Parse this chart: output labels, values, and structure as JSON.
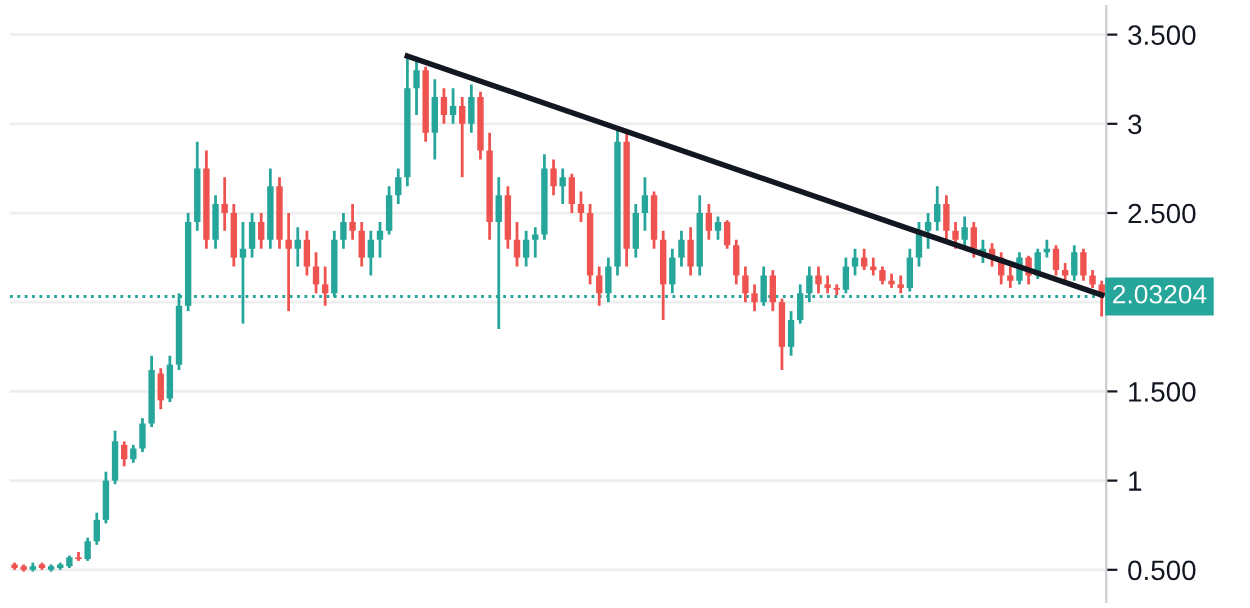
{
  "chart_data": {
    "type": "candlestick",
    "categories": [
      null,
      null,
      null,
      null,
      null,
      null,
      null,
      null,
      null,
      null,
      null,
      null,
      null,
      null,
      null,
      null,
      null,
      null,
      null,
      null,
      null,
      null,
      null,
      null,
      null,
      null,
      null,
      null,
      null,
      null,
      null,
      null,
      null,
      null,
      null,
      null,
      null,
      null,
      null,
      null,
      null,
      null,
      null,
      null,
      null,
      null,
      null,
      null,
      null,
      null,
      null,
      null,
      null,
      null,
      null,
      null,
      null,
      null,
      null,
      null,
      null,
      null,
      null,
      null,
      null,
      null,
      null,
      null,
      null,
      null,
      null,
      null,
      null,
      null,
      null,
      null,
      null,
      null,
      null,
      null,
      null,
      null,
      null,
      null,
      null,
      null,
      null,
      null,
      null,
      null,
      null,
      null,
      null,
      null,
      null,
      null,
      null,
      null,
      null,
      null,
      null,
      null,
      null,
      null,
      null,
      null,
      null,
      null,
      null,
      null,
      null,
      null,
      null,
      null,
      null,
      null,
      null,
      null,
      null,
      null
    ],
    "ohlc": [
      [
        0.53,
        0.54,
        0.5,
        0.51
      ],
      [
        0.52,
        0.53,
        0.49,
        0.5
      ],
      [
        0.5,
        0.54,
        0.49,
        0.52
      ],
      [
        0.53,
        0.54,
        0.5,
        0.51
      ],
      [
        0.5,
        0.53,
        0.49,
        0.52
      ],
      [
        0.51,
        0.54,
        0.5,
        0.53
      ],
      [
        0.52,
        0.58,
        0.51,
        0.57
      ],
      [
        0.57,
        0.6,
        0.55,
        0.56
      ],
      [
        0.56,
        0.68,
        0.55,
        0.66
      ],
      [
        0.66,
        0.82,
        0.64,
        0.78
      ],
      [
        0.78,
        1.05,
        0.76,
        1.0
      ],
      [
        1.0,
        1.28,
        0.98,
        1.22
      ],
      [
        1.2,
        1.22,
        1.08,
        1.12
      ],
      [
        1.12,
        1.2,
        1.1,
        1.18
      ],
      [
        1.18,
        1.35,
        1.16,
        1.32
      ],
      [
        1.32,
        1.7,
        1.3,
        1.62
      ],
      [
        1.6,
        1.63,
        1.4,
        1.45
      ],
      [
        1.46,
        1.7,
        1.44,
        1.65
      ],
      [
        1.65,
        2.05,
        1.62,
        1.98
      ],
      [
        1.98,
        2.5,
        1.95,
        2.45
      ],
      [
        2.45,
        2.9,
        2.4,
        2.75
      ],
      [
        2.75,
        2.85,
        2.3,
        2.35
      ],
      [
        2.35,
        2.6,
        2.3,
        2.55
      ],
      [
        2.55,
        2.7,
        2.4,
        2.5
      ],
      [
        2.5,
        2.55,
        2.2,
        2.25
      ],
      [
        2.25,
        2.45,
        1.88,
        2.3
      ],
      [
        2.3,
        2.5,
        2.25,
        2.45
      ],
      [
        2.45,
        2.5,
        2.3,
        2.35
      ],
      [
        2.35,
        2.75,
        2.3,
        2.65
      ],
      [
        2.65,
        2.7,
        2.3,
        2.35
      ],
      [
        2.35,
        2.5,
        1.95,
        2.3
      ],
      [
        2.3,
        2.42,
        2.2,
        2.35
      ],
      [
        2.35,
        2.4,
        2.15,
        2.2
      ],
      [
        2.2,
        2.28,
        2.05,
        2.1
      ],
      [
        2.1,
        2.2,
        1.98,
        2.05
      ],
      [
        2.05,
        2.4,
        2.03,
        2.35
      ],
      [
        2.35,
        2.5,
        2.3,
        2.45
      ],
      [
        2.45,
        2.55,
        2.35,
        2.4
      ],
      [
        2.4,
        2.45,
        2.2,
        2.25
      ],
      [
        2.25,
        2.4,
        2.15,
        2.35
      ],
      [
        2.35,
        2.45,
        2.25,
        2.4
      ],
      [
        2.4,
        2.65,
        2.38,
        2.6
      ],
      [
        2.6,
        2.75,
        2.55,
        2.7
      ],
      [
        2.7,
        3.38,
        2.65,
        3.2
      ],
      [
        3.2,
        3.35,
        3.05,
        3.3
      ],
      [
        3.3,
        3.32,
        2.9,
        2.95
      ],
      [
        2.95,
        3.25,
        2.8,
        3.15
      ],
      [
        3.15,
        3.2,
        3.0,
        3.05
      ],
      [
        3.05,
        3.2,
        3.0,
        3.1
      ],
      [
        3.1,
        3.15,
        2.7,
        3.0
      ],
      [
        3.0,
        3.22,
        2.95,
        3.15
      ],
      [
        3.15,
        3.18,
        2.8,
        2.85
      ],
      [
        2.85,
        2.95,
        2.35,
        2.45
      ],
      [
        2.45,
        2.7,
        1.85,
        2.6
      ],
      [
        2.6,
        2.65,
        2.3,
        2.35
      ],
      [
        2.35,
        2.45,
        2.2,
        2.25
      ],
      [
        2.25,
        2.4,
        2.2,
        2.35
      ],
      [
        2.35,
        2.42,
        2.25,
        2.38
      ],
      [
        2.38,
        2.83,
        2.35,
        2.75
      ],
      [
        2.75,
        2.8,
        2.6,
        2.65
      ],
      [
        2.65,
        2.75,
        2.55,
        2.7
      ],
      [
        2.7,
        2.72,
        2.5,
        2.55
      ],
      [
        2.55,
        2.62,
        2.45,
        2.5
      ],
      [
        2.5,
        2.55,
        2.1,
        2.15
      ],
      [
        2.15,
        2.2,
        1.98,
        2.05
      ],
      [
        2.05,
        2.25,
        2.0,
        2.2
      ],
      [
        2.2,
        2.98,
        2.15,
        2.9
      ],
      [
        2.9,
        2.95,
        2.2,
        2.3
      ],
      [
        2.3,
        2.55,
        2.25,
        2.5
      ],
      [
        2.5,
        2.7,
        2.4,
        2.6
      ],
      [
        2.6,
        2.62,
        2.3,
        2.35
      ],
      [
        2.35,
        2.4,
        1.9,
        2.1
      ],
      [
        2.1,
        2.3,
        2.05,
        2.25
      ],
      [
        2.25,
        2.4,
        2.2,
        2.35
      ],
      [
        2.35,
        2.42,
        2.15,
        2.2
      ],
      [
        2.2,
        2.6,
        2.15,
        2.5
      ],
      [
        2.5,
        2.55,
        2.35,
        2.4
      ],
      [
        2.4,
        2.48,
        2.35,
        2.45
      ],
      [
        2.45,
        2.46,
        2.3,
        2.32
      ],
      [
        2.32,
        2.35,
        2.1,
        2.15
      ],
      [
        2.15,
        2.2,
        2.0,
        2.05
      ],
      [
        2.05,
        2.1,
        1.95,
        2.0
      ],
      [
        2.0,
        2.2,
        1.98,
        2.15
      ],
      [
        2.15,
        2.18,
        1.95,
        2.0
      ],
      [
        2.0,
        2.02,
        1.62,
        1.75
      ],
      [
        1.75,
        1.95,
        1.7,
        1.9
      ],
      [
        1.9,
        2.1,
        1.88,
        2.05
      ],
      [
        2.05,
        2.2,
        2.0,
        2.15
      ],
      [
        2.15,
        2.2,
        2.05,
        2.1
      ],
      [
        2.1,
        2.15,
        2.05,
        2.08
      ],
      [
        2.08,
        2.1,
        2.04,
        2.07
      ],
      [
        2.07,
        2.25,
        2.05,
        2.2
      ],
      [
        2.2,
        2.3,
        2.15,
        2.25
      ],
      [
        2.25,
        2.3,
        2.18,
        2.2
      ],
      [
        2.2,
        2.25,
        2.15,
        2.18
      ],
      [
        2.18,
        2.2,
        2.1,
        2.12
      ],
      [
        2.12,
        2.16,
        2.08,
        2.1
      ],
      [
        2.1,
        2.15,
        2.05,
        2.08
      ],
      [
        2.08,
        2.3,
        2.06,
        2.25
      ],
      [
        2.25,
        2.45,
        2.2,
        2.4
      ],
      [
        2.4,
        2.5,
        2.3,
        2.45
      ],
      [
        2.45,
        2.65,
        2.4,
        2.55
      ],
      [
        2.55,
        2.6,
        2.35,
        2.4
      ],
      [
        2.4,
        2.45,
        2.3,
        2.35
      ],
      [
        2.35,
        2.48,
        2.3,
        2.42
      ],
      [
        2.42,
        2.45,
        2.25,
        2.3
      ],
      [
        2.27,
        2.35,
        2.22,
        2.3
      ],
      [
        2.3,
        2.33,
        2.2,
        2.25
      ],
      [
        2.25,
        2.28,
        2.1,
        2.15
      ],
      [
        2.15,
        2.2,
        2.08,
        2.12
      ],
      [
        2.12,
        2.28,
        2.1,
        2.25
      ],
      [
        2.25,
        2.26,
        2.1,
        2.15
      ],
      [
        2.15,
        2.3,
        2.13,
        2.28
      ],
      [
        2.28,
        2.35,
        2.25,
        2.3
      ],
      [
        2.3,
        2.32,
        2.15,
        2.18
      ],
      [
        2.18,
        2.22,
        2.1,
        2.15
      ],
      [
        2.15,
        2.32,
        2.12,
        2.28
      ],
      [
        2.28,
        2.3,
        2.12,
        2.15
      ],
      [
        2.15,
        2.18,
        2.08,
        2.1
      ],
      [
        2.1,
        2.12,
        1.92,
        2.03
      ]
    ],
    "colors": [
      "#ef5350",
      "#ef5350",
      "#26a69a",
      "#ef5350",
      "#26a69a",
      "#26a69a",
      "#26a69a",
      "#ef5350",
      "#26a69a",
      "#26a69a",
      "#26a69a",
      "#26a69a",
      "#ef5350",
      "#26a69a",
      "#26a69a",
      "#26a69a",
      "#ef5350",
      "#26a69a",
      "#26a69a",
      "#26a69a",
      "#26a69a",
      "#ef5350",
      "#26a69a",
      "#ef5350",
      "#ef5350",
      "#26a69a",
      "#26a69a",
      "#ef5350",
      "#26a69a",
      "#ef5350",
      "#ef5350",
      "#26a69a",
      "#ef5350",
      "#ef5350",
      "#ef5350",
      "#26a69a",
      "#26a69a",
      "#ef5350",
      "#ef5350",
      "#26a69a",
      "#26a69a",
      "#26a69a",
      "#26a69a",
      "#26a69a",
      "#26a69a",
      "#ef5350",
      "#26a69a",
      "#ef5350",
      "#26a69a",
      "#ef5350",
      "#26a69a",
      "#ef5350",
      "#ef5350",
      "#26a69a",
      "#ef5350",
      "#ef5350",
      "#26a69a",
      "#26a69a",
      "#26a69a",
      "#ef5350",
      "#26a69a",
      "#ef5350",
      "#ef5350",
      "#ef5350",
      "#ef5350",
      "#26a69a",
      "#26a69a",
      "#ef5350",
      "#26a69a",
      "#26a69a",
      "#ef5350",
      "#ef5350",
      "#26a69a",
      "#26a69a",
      "#ef5350",
      "#26a69a",
      "#ef5350",
      "#26a69a",
      "#ef5350",
      "#ef5350",
      "#ef5350",
      "#ef5350",
      "#26a69a",
      "#ef5350",
      "#ef5350",
      "#26a69a",
      "#26a69a",
      "#26a69a",
      "#ef5350",
      "#ef5350",
      "#ef5350",
      "#26a69a",
      "#26a69a",
      "#ef5350",
      "#ef5350",
      "#ef5350",
      "#ef5350",
      "#ef5350",
      "#26a69a",
      "#26a69a",
      "#26a69a",
      "#26a69a",
      "#ef5350",
      "#ef5350",
      "#26a69a",
      "#ef5350",
      "#26a69a",
      "#ef5350",
      "#ef5350",
      "#ef5350",
      "#26a69a",
      "#ef5350",
      "#26a69a",
      "#26a69a",
      "#ef5350",
      "#ef5350",
      "#26a69a",
      "#ef5350",
      "#ef5350",
      "#ef5350"
    ],
    "series": [
      {
        "type": "line",
        "values": [
          null,
          null,
          null,
          null,
          null,
          null,
          null,
          null,
          null,
          null,
          null,
          null,
          null,
          null,
          null,
          null,
          null,
          null,
          null,
          null,
          null,
          null,
          null,
          null,
          null,
          null,
          null,
          null,
          null,
          null,
          null,
          null,
          null,
          null,
          null,
          null,
          null,
          null,
          null,
          null,
          null,
          null,
          null,
          3.38,
          null,
          null,
          null,
          null,
          null,
          null,
          null,
          null,
          null,
          null,
          null,
          null,
          null,
          null,
          null,
          null,
          null,
          null,
          null,
          null,
          null,
          null,
          null,
          null,
          null,
          null,
          null,
          null,
          null,
          null,
          null,
          null,
          null,
          null,
          null,
          null,
          null,
          null,
          null,
          null,
          null,
          null,
          null,
          null,
          null,
          null,
          null,
          null,
          null,
          null,
          null,
          null,
          null,
          null,
          null,
          null,
          null,
          null,
          null,
          null,
          null,
          null,
          null,
          null,
          null,
          null,
          null,
          null,
          null,
          null,
          null,
          null,
          null,
          null,
          null,
          2.04
        ],
        "color": "#131722"
      }
    ],
    "ref_lines": [
      {
        "axis": "y",
        "value": 2.03204,
        "label": "2.03204",
        "color": "#26a69a",
        "line_style": "dotted"
      }
    ],
    "ylim": [
      0.32,
      3.66
    ],
    "yticks": [
      {
        "value": 0.5,
        "label": "0.500"
      },
      1,
      {
        "value": 1.5,
        "label": "1.500"
      },
      {
        "value": 2,
        "label": null
      },
      {
        "value": 2.5,
        "label": "2.500"
      },
      3,
      {
        "value": 3.5,
        "label": "3.500"
      }
    ],
    "grid": "y",
    "tick_labels": "y"
  }
}
